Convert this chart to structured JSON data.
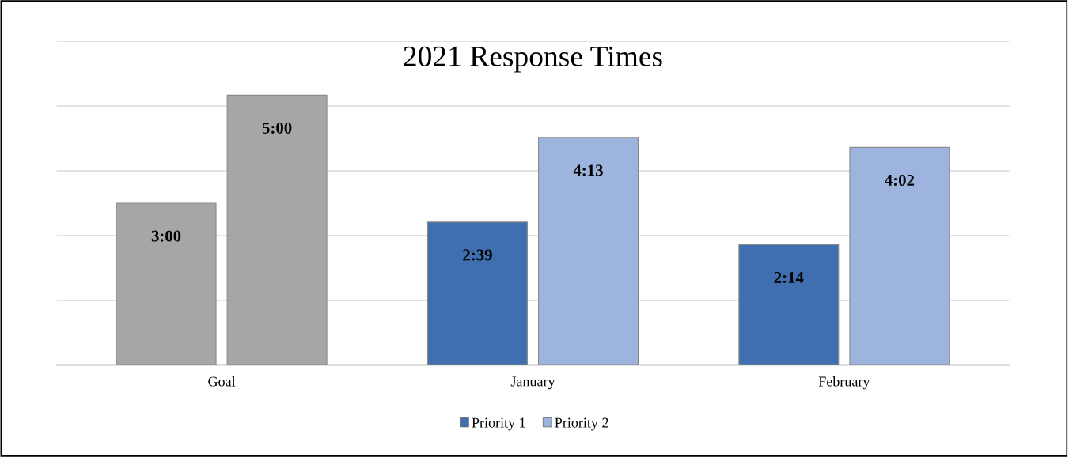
{
  "chart_data": {
    "type": "bar",
    "title": "2021 Response Times",
    "categories": [
      "Goal",
      "January",
      "February"
    ],
    "series": [
      {
        "name": "Priority 1",
        "color": "#3f6fae",
        "colors": [
          "#a6a6a6",
          "#3f6fae",
          "#3f6fae"
        ],
        "values": [
          3.0,
          2.65,
          2.2333
        ],
        "value_labels": [
          "3:00",
          "2:39",
          "2:14"
        ]
      },
      {
        "name": "Priority 2",
        "color": "#9db5de",
        "colors": [
          "#a6a6a6",
          "#9db5de",
          "#9db5de"
        ],
        "values": [
          5.0,
          4.2167,
          4.0333
        ],
        "value_labels": [
          "5:00",
          "4:13",
          "4:02"
        ]
      }
    ],
    "ylim": [
      0,
      6
    ],
    "yticks": [
      {
        "value": 0,
        "label": null
      },
      {
        "value": 1.2,
        "label": null
      },
      {
        "value": 2.4,
        "label": null
      },
      {
        "value": 3.6,
        "label": null
      },
      {
        "value": 4.8,
        "label": null
      },
      {
        "value": 6,
        "label": null
      }
    ],
    "grid": "y",
    "legend": "bottom",
    "tick_labels": "x"
  }
}
